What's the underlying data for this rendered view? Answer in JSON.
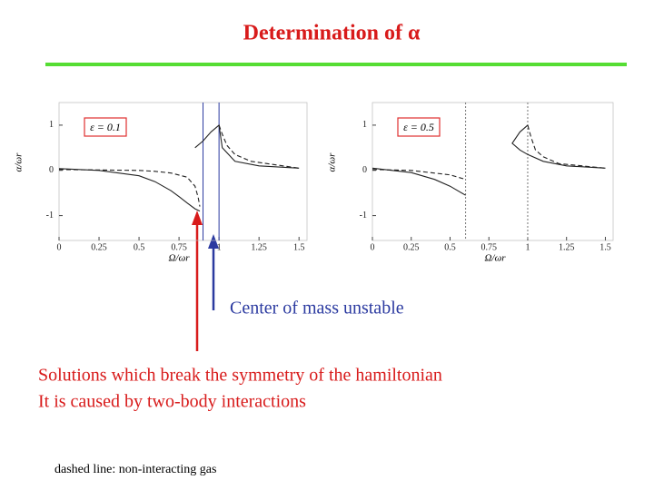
{
  "title": "Determination of α",
  "chart_data": [
    {
      "type": "line",
      "legend_label": "ε = 0.1",
      "xlabel": "Ω/ωr",
      "ylabel": "α/ωr",
      "xlim": [
        0,
        1.55
      ],
      "ylim": [
        -1.55,
        1.5
      ],
      "xticks": [
        0,
        0.25,
        0.5,
        0.75,
        1,
        1.25,
        1.5
      ],
      "yticks": [
        -1,
        0,
        1
      ],
      "vlines": [
        0.9,
        1
      ],
      "vline_color": "#2b3aa0",
      "vline_dashed": false,
      "series": [
        {
          "color": "#222222",
          "dashed": false,
          "x": [
            0,
            0.25,
            0.5,
            0.6,
            0.7,
            0.75,
            0.8,
            0.85,
            0.88,
            null,
            0.85,
            0.9,
            0.95,
            1.0,
            1.02,
            1.1,
            1.25,
            1.5
          ],
          "values": [
            0.04,
            0,
            -0.12,
            -0.25,
            -0.45,
            -0.58,
            -0.72,
            -0.85,
            -0.9,
            null,
            0.5,
            0.65,
            0.85,
            1.0,
            0.5,
            0.2,
            0.1,
            0.05
          ]
        },
        {
          "color": "#222222",
          "dashed": true,
          "x": [
            0,
            0.25,
            0.5,
            0.6,
            0.7,
            0.8,
            0.85,
            0.87,
            0.88,
            null,
            1.0,
            1.02,
            1.05,
            1.1,
            1.2,
            1.5
          ],
          "values": [
            0.02,
            0.01,
            0,
            -0.02,
            -0.06,
            -0.15,
            -0.35,
            -0.6,
            -0.8,
            null,
            1.0,
            0.8,
            0.55,
            0.35,
            0.2,
            0.05
          ]
        }
      ]
    },
    {
      "type": "line",
      "legend_label": "ε = 0.5",
      "xlabel": "Ω/ωr",
      "ylabel": "α/ωr",
      "xlim": [
        0,
        1.55
      ],
      "ylim": [
        -1.55,
        1.5
      ],
      "xticks": [
        0,
        0.25,
        0.5,
        0.75,
        1,
        1.25,
        1.5
      ],
      "yticks": [
        -1,
        0,
        1
      ],
      "vlines": [
        0.6,
        1
      ],
      "vline_color": "#777777",
      "vline_dashed": true,
      "series": [
        {
          "color": "#222222",
          "dashed": false,
          "x": [
            0,
            0.25,
            0.4,
            0.5,
            0.6,
            null,
            1.0,
            0.95,
            0.9,
            0.95,
            1.0,
            1.1,
            1.25,
            1.5
          ],
          "values": [
            0.05,
            -0.05,
            -0.2,
            -0.35,
            -0.55,
            null,
            1.0,
            0.85,
            0.6,
            0.45,
            0.35,
            0.2,
            0.1,
            0.05
          ]
        },
        {
          "color": "#222222",
          "dashed": true,
          "x": [
            0,
            0.25,
            0.5,
            0.6,
            null,
            1.0,
            1.02,
            1.05,
            1.1,
            1.2,
            1.5
          ],
          "values": [
            0.02,
            0,
            -0.1,
            -0.2,
            null,
            1.0,
            0.75,
            0.45,
            0.3,
            0.15,
            0.05
          ]
        }
      ]
    }
  ],
  "annotations": {
    "blue": "Center of mass unstable",
    "red": [
      "Solutions which break the symmetry of the hamiltonian",
      "It is caused by two-body interactions"
    ],
    "note": "dashed line: non-interacting gas"
  }
}
